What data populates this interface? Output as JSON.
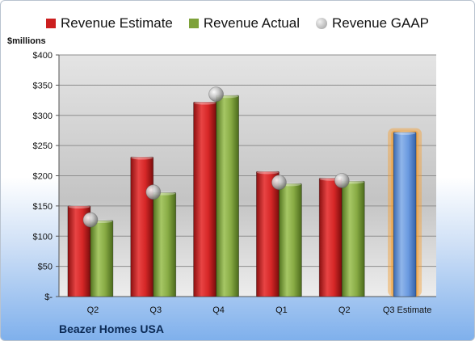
{
  "company": "Beazer Homes USA",
  "unit_label": "$millions",
  "legend": [
    {
      "label": "Revenue Estimate",
      "color": "#cc1f1f",
      "kind": "bar"
    },
    {
      "label": "Revenue Actual",
      "color": "#7ea23a",
      "kind": "bar"
    },
    {
      "label": "Revenue GAAP",
      "color": "#b5b5b5",
      "kind": "dot"
    }
  ],
  "chart_data": {
    "type": "bar",
    "categories": [
      "Q2",
      "Q3",
      "Q4",
      "Q1",
      "Q2",
      "Q3 Estimate"
    ],
    "series": [
      {
        "name": "Revenue Estimate",
        "color": "#cc1f1f",
        "values": [
          150,
          231,
          322,
          207,
          196,
          null
        ]
      },
      {
        "name": "Revenue Actual",
        "color": "#7ea23a",
        "values": [
          126,
          172,
          333,
          187,
          191,
          null
        ]
      },
      {
        "name": "Revenue GAAP",
        "color": "#b5b5b5",
        "kind": "marker",
        "values": [
          127,
          173,
          335,
          189,
          192,
          null
        ]
      },
      {
        "name": "Revenue Estimate (next quarter)",
        "color": "#5b8fd6",
        "highlight": "#f5a035",
        "values": [
          null,
          null,
          null,
          null,
          null,
          272
        ]
      }
    ],
    "ylim": [
      0,
      400
    ],
    "yticks": [
      0,
      50,
      100,
      150,
      200,
      250,
      300,
      350,
      400
    ],
    "ytick_labels": [
      "$-",
      "$50",
      "$100",
      "$150",
      "$200",
      "$250",
      "$300",
      "$350",
      "$400"
    ],
    "grid": true,
    "legend_position": "top"
  }
}
